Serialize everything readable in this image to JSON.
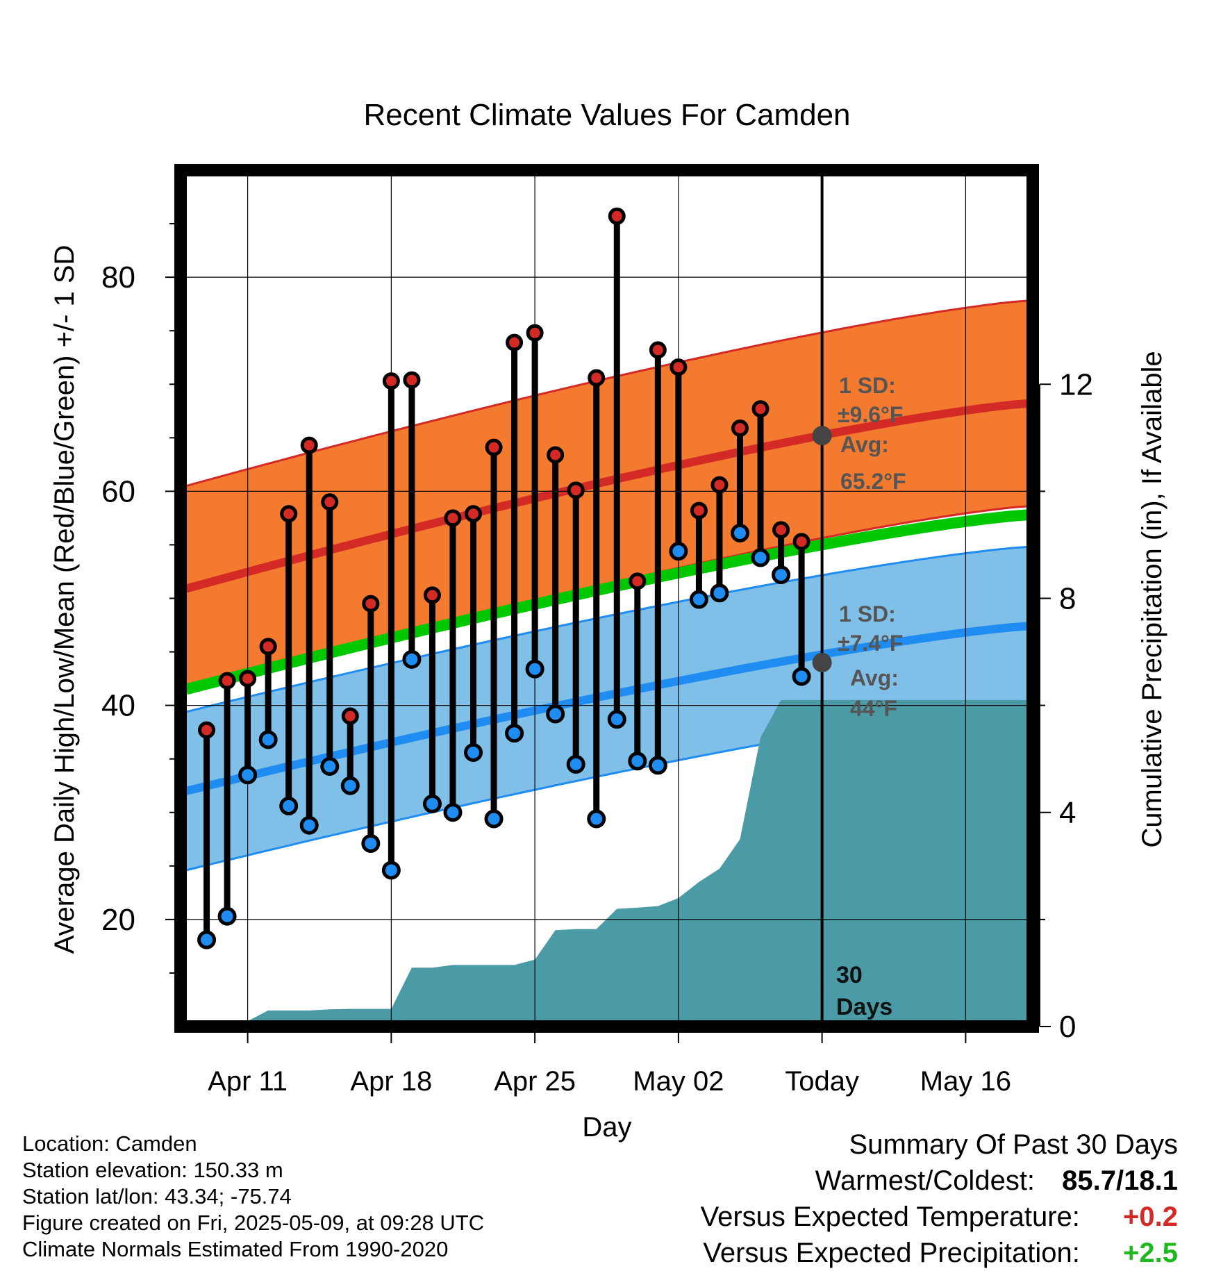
{
  "chart_data": {
    "type": "line",
    "title": "Recent Climate Values For Camden",
    "xlabel": "Day",
    "ylabel": "Average Daily High/Low/Mean (Red/Blue/Green) +/- 1 SD",
    "y2label": "Cumulative Precipitation (in), If Available",
    "ylim": [
      10,
      90
    ],
    "y2lim": [
      0,
      16
    ],
    "y_ticks": [
      "20",
      "40",
      "60",
      "80"
    ],
    "y2_ticks": [
      "0",
      "4",
      "8",
      "12"
    ],
    "x_ticks": [
      "Apr 11",
      "Apr 18",
      "Apr 25",
      "May 02",
      "Today",
      "May 16"
    ],
    "x_range": [
      "Apr 8",
      "May 19"
    ],
    "today": "May 9",
    "grid": true,
    "colors": {
      "high_band": "#F47A30",
      "high_line": "#D42A25",
      "low_band": "#80C0E8",
      "low_line": "#1E8CF0",
      "mean_line": "#00C800",
      "precip": "#4A9BA6",
      "marker_high": "#D42A25",
      "marker_low": "#1E8CF0",
      "annotation": "#555555"
    },
    "normals": {
      "high_mean": {
        "start": 50.9,
        "end": 68.2
      },
      "high_sd": 9.6,
      "low_mean": {
        "start": 32.0,
        "end": 47.4
      },
      "low_sd": 7.4,
      "mean": {
        "start": 41.5,
        "end": 57.8
      }
    },
    "series": [
      {
        "name": "Daily High",
        "dates": [
          "Apr 9",
          "Apr 10",
          "Apr 11",
          "Apr 12",
          "Apr 13",
          "Apr 14",
          "Apr 15",
          "Apr 16",
          "Apr 17",
          "Apr 18",
          "Apr 19",
          "Apr 20",
          "Apr 21",
          "Apr 22",
          "Apr 23",
          "Apr 24",
          "Apr 25",
          "Apr 26",
          "Apr 27",
          "Apr 28",
          "Apr 29",
          "Apr 30",
          "May 1",
          "May 2",
          "May 3",
          "May 4",
          "May 5",
          "May 6",
          "May 7",
          "May 8"
        ],
        "values": [
          37.7,
          42.3,
          42.5,
          45.5,
          57.9,
          64.3,
          59.0,
          39.0,
          49.5,
          70.3,
          70.4,
          50.3,
          57.5,
          57.9,
          64.1,
          73.9,
          74.8,
          63.4,
          60.1,
          70.6,
          85.7,
          51.6,
          73.2,
          71.6,
          58.2,
          60.6,
          65.9,
          67.7,
          56.4,
          55.3
        ]
      },
      {
        "name": "Daily Low",
        "dates": [
          "Apr 9",
          "Apr 10",
          "Apr 11",
          "Apr 12",
          "Apr 13",
          "Apr 14",
          "Apr 15",
          "Apr 16",
          "Apr 17",
          "Apr 18",
          "Apr 19",
          "Apr 20",
          "Apr 21",
          "Apr 22",
          "Apr 23",
          "Apr 24",
          "Apr 25",
          "Apr 26",
          "Apr 27",
          "Apr 28",
          "Apr 29",
          "Apr 30",
          "May 1",
          "May 2",
          "May 3",
          "May 4",
          "May 5",
          "May 6",
          "May 7",
          "May 8"
        ],
        "values": [
          18.1,
          20.3,
          33.5,
          36.8,
          30.6,
          28.8,
          34.3,
          32.5,
          27.1,
          24.6,
          44.3,
          30.8,
          30.0,
          35.6,
          29.4,
          37.4,
          43.4,
          39.2,
          34.5,
          29.4,
          38.7,
          34.8,
          34.4,
          54.4,
          49.9,
          50.5,
          56.1,
          53.8,
          52.2,
          42.7
        ]
      },
      {
        "name": "Cumulative Precipitation",
        "dates": [
          "Apr 8",
          "Apr 10",
          "Apr 11",
          "Apr 12",
          "Apr 13",
          "Apr 14",
          "Apr 15",
          "Apr 16",
          "Apr 17",
          "Apr 18",
          "Apr 19",
          "Apr 20",
          "Apr 21",
          "Apr 22",
          "Apr 23",
          "Apr 24",
          "Apr 25",
          "Apr 26",
          "Apr 27",
          "Apr 28",
          "Apr 29",
          "Apr 30",
          "May 1",
          "May 2",
          "May 3",
          "May 4",
          "May 5",
          "May 6",
          "May 7",
          "May 8",
          "May 9",
          "May 19"
        ],
        "values": [
          0,
          0,
          0.1,
          0.3,
          0.3,
          0.3,
          0.32,
          0.33,
          0.33,
          0.33,
          1.1,
          1.1,
          1.15,
          1.15,
          1.15,
          1.15,
          1.25,
          1.8,
          1.82,
          1.82,
          2.2,
          2.22,
          2.25,
          2.4,
          2.7,
          2.95,
          3.5,
          5.4,
          6.1,
          6.1,
          6.1,
          6.1
        ]
      }
    ],
    "annotations": {
      "high_sd_label": "1 SD:",
      "high_sd_value": "±9.6°F",
      "high_avg_label": "Avg:",
      "high_avg_value": "65.2°F",
      "high_avg_point": 65.2,
      "low_sd_label": "1 SD:",
      "low_sd_value": "±7.4°F",
      "low_avg_label": "Avg:",
      "low_avg_value": "44°F",
      "low_avg_point": 44.0,
      "days_line1": "30",
      "days_line2": "Days"
    }
  },
  "info": {
    "location": "Location: Camden",
    "elevation": "Station elevation: 150.33 m",
    "latlon": "Station lat/lon: 43.34; -75.74",
    "created": "Figure created on Fri, 2025-05-09, at 09:28 UTC",
    "normals": "Climate Normals Estimated From 1990-2020"
  },
  "summary": {
    "title": "Summary Of Past 30 Days",
    "warm_cold_label": "Warmest/Coldest:",
    "warm_cold_value": "85.7/18.1",
    "temp_label": "Versus Expected Temperature:",
    "temp_value": "+0.2",
    "temp_color": "#D42A25",
    "precip_label": "Versus Expected Precipitation:",
    "precip_value": "+2.5",
    "precip_color": "#1FB81F"
  }
}
